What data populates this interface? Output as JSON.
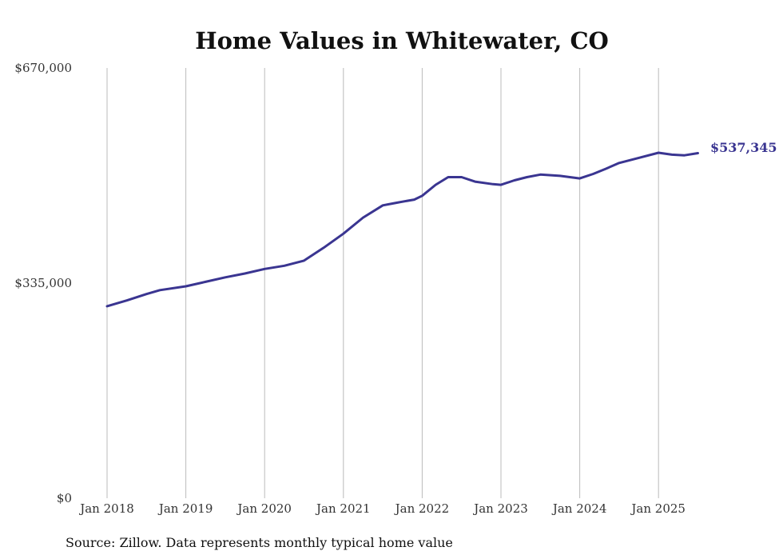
{
  "chart_data": {
    "type": "line",
    "title": "Home Values in Whitewater, CO",
    "xlabel": "",
    "ylabel": "",
    "ylim": [
      0,
      670000
    ],
    "y_ticks": [
      {
        "value": 0,
        "label": "$0"
      },
      {
        "value": 335000,
        "label": "$335,000"
      },
      {
        "value": 670000,
        "label": "$670,000"
      }
    ],
    "x_ticks": [
      {
        "value": 2018,
        "label": "Jan 2018"
      },
      {
        "value": 2019,
        "label": "Jan 2019"
      },
      {
        "value": 2020,
        "label": "Jan 2020"
      },
      {
        "value": 2021,
        "label": "Jan 2021"
      },
      {
        "value": 2022,
        "label": "Jan 2022"
      },
      {
        "value": 2023,
        "label": "Jan 2023"
      },
      {
        "value": 2024,
        "label": "Jan 2024"
      },
      {
        "value": 2025,
        "label": "Jan 2025"
      }
    ],
    "xlim": [
      2018,
      2025.5
    ],
    "grid": "vertical",
    "line_color": "#3a3591",
    "series": [
      {
        "points": [
          [
            2018.0,
            299000
          ],
          [
            2018.25,
            308000
          ],
          [
            2018.5,
            318000
          ],
          [
            2018.67,
            324000
          ],
          [
            2019.0,
            330000
          ],
          [
            2019.25,
            337000
          ],
          [
            2019.5,
            344000
          ],
          [
            2019.75,
            350000
          ],
          [
            2020.0,
            357000
          ],
          [
            2020.25,
            362000
          ],
          [
            2020.5,
            370000
          ],
          [
            2020.75,
            390000
          ],
          [
            2021.0,
            412000
          ],
          [
            2021.25,
            437000
          ],
          [
            2021.5,
            456000
          ],
          [
            2021.67,
            460000
          ],
          [
            2021.9,
            465000
          ],
          [
            2022.0,
            471000
          ],
          [
            2022.17,
            488000
          ],
          [
            2022.33,
            500000
          ],
          [
            2022.5,
            500000
          ],
          [
            2022.67,
            493000
          ],
          [
            2022.9,
            489000
          ],
          [
            2023.0,
            488000
          ],
          [
            2023.17,
            495000
          ],
          [
            2023.33,
            500000
          ],
          [
            2023.5,
            504000
          ],
          [
            2023.75,
            502000
          ],
          [
            2024.0,
            498000
          ],
          [
            2024.17,
            505000
          ],
          [
            2024.33,
            513000
          ],
          [
            2024.5,
            522000
          ],
          [
            2024.75,
            530000
          ],
          [
            2025.0,
            538000
          ],
          [
            2025.17,
            535000
          ],
          [
            2025.33,
            534000
          ],
          [
            2025.5,
            537345
          ]
        ]
      }
    ],
    "end_label": "$537,345",
    "source_note": "Source: Zillow. Data represents monthly typical home value"
  }
}
